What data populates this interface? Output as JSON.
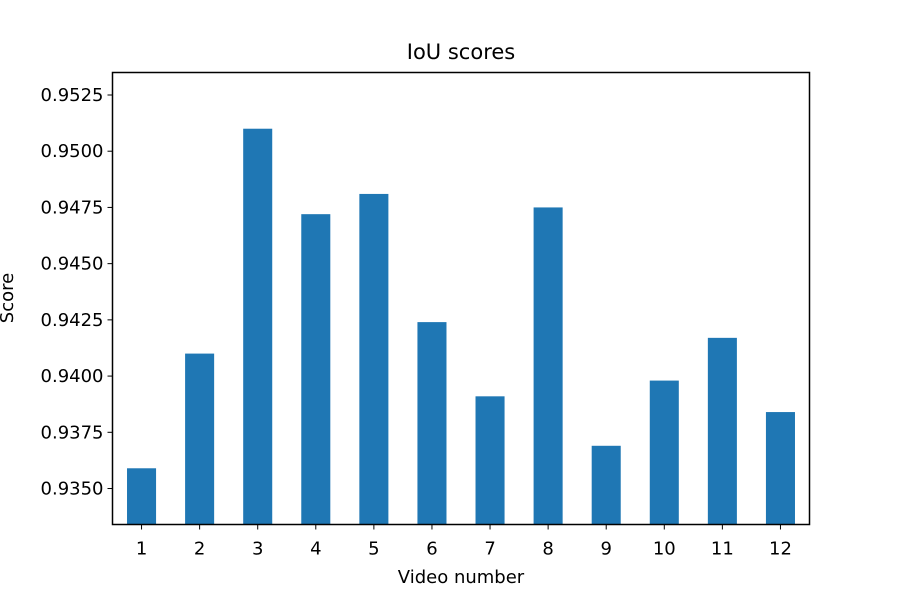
{
  "chart_data": {
    "type": "bar",
    "title": "IoU scores",
    "xlabel": "Video number",
    "ylabel": "Score",
    "categories": [
      "1",
      "2",
      "3",
      "4",
      "5",
      "6",
      "7",
      "8",
      "9",
      "10",
      "11",
      "12"
    ],
    "values": [
      0.9359,
      0.941,
      0.951,
      0.9472,
      0.9481,
      0.9424,
      0.9391,
      0.9475,
      0.9369,
      0.9398,
      0.9417,
      0.9384
    ],
    "ylim": [
      0.9334,
      0.9535
    ],
    "yticks": [
      0.935,
      0.9375,
      0.94,
      0.9425,
      0.945,
      0.9475,
      0.95,
      0.9525
    ],
    "ytick_labels": [
      "0.9350",
      "0.9375",
      "0.9400",
      "0.9425",
      "0.9450",
      "0.9475",
      "0.9500",
      "0.9525"
    ],
    "bar_color": "#1f77b4",
    "grid": false,
    "legend": false
  }
}
